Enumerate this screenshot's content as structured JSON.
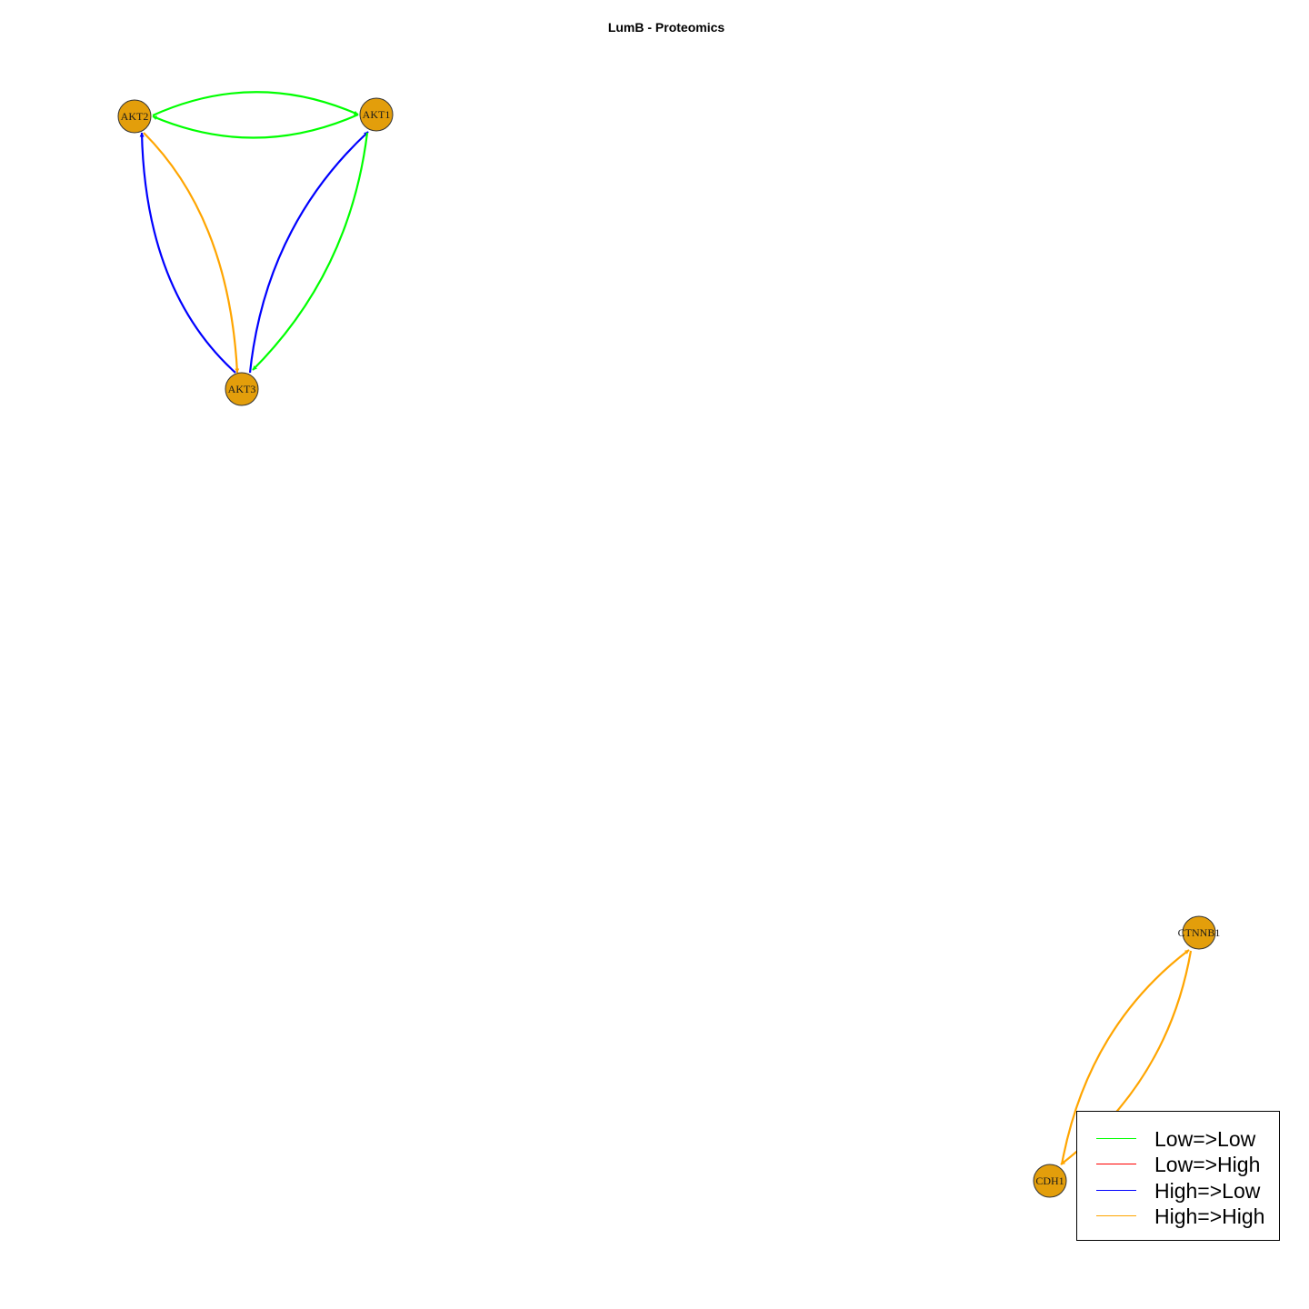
{
  "title": "LumB - Proteomics",
  "colors": {
    "node_fill": "#e39e0b",
    "node_stroke": "#333333",
    "low_low": "#00ff00",
    "low_high": "#ff0000",
    "high_low": "#0000ff",
    "high_high": "#ffa500"
  },
  "nodes": [
    {
      "id": "AKT2",
      "label": "AKT2"
    },
    {
      "id": "AKT1",
      "label": "AKT1"
    },
    {
      "id": "AKT3",
      "label": "AKT3"
    },
    {
      "id": "CTNNB1",
      "label": "CTNNB1"
    },
    {
      "id": "CDH1",
      "label": "CDH1"
    }
  ],
  "edges": [
    {
      "from": "AKT2",
      "to": "AKT1",
      "type": "Low=>Low"
    },
    {
      "from": "AKT1",
      "to": "AKT2",
      "type": "Low=>Low"
    },
    {
      "from": "AKT2",
      "to": "AKT3",
      "type": "High=>High"
    },
    {
      "from": "AKT3",
      "to": "AKT2",
      "type": "High=>Low"
    },
    {
      "from": "AKT3",
      "to": "AKT1",
      "type": "High=>Low"
    },
    {
      "from": "AKT1",
      "to": "AKT3",
      "type": "Low=>Low"
    },
    {
      "from": "CDH1",
      "to": "CTNNB1",
      "type": "High=>High"
    },
    {
      "from": "CTNNB1",
      "to": "CDH1",
      "type": "High=>High"
    }
  ],
  "legend": {
    "items": [
      {
        "label": "Low=>Low",
        "color_key": "low_low"
      },
      {
        "label": "Low=>High",
        "color_key": "low_high"
      },
      {
        "label": "High=>Low",
        "color_key": "high_low"
      },
      {
        "label": "High=>High",
        "color_key": "high_high"
      }
    ]
  }
}
